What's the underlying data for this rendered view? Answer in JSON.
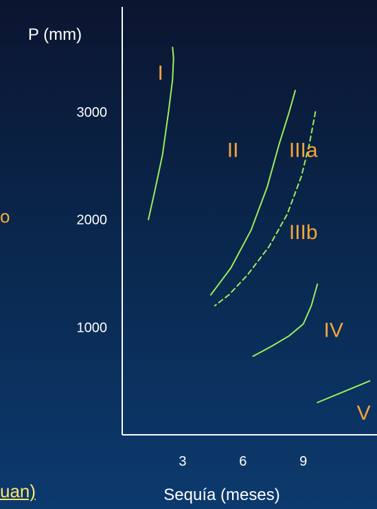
{
  "colors": {
    "axis": "#ffffff",
    "curve": "#9cf05a",
    "zone_label": "#f5a43a",
    "text": "#ffffff",
    "fragment_orange": "#f5b13c",
    "fragment_yellow": "#ffe66d"
  },
  "left_fragments": {
    "orange": "o",
    "yellow": "uan)"
  },
  "chart_data": {
    "type": "line",
    "ylabel": "P (mm)",
    "xlabel": "Sequía (meses)",
    "xticks": [
      3,
      6,
      9
    ],
    "yticks": [
      1000,
      2000,
      3000
    ],
    "xlim": [
      0,
      12.5
    ],
    "ylim": [
      0,
      3500
    ],
    "grid": false,
    "series": [
      {
        "name": "I",
        "style": "solid",
        "points": [
          [
            2.5,
            3600
          ],
          [
            2.55,
            3500
          ],
          [
            2.5,
            3300
          ],
          [
            2.3,
            3000
          ],
          [
            2.0,
            2600
          ],
          [
            1.6,
            2250
          ],
          [
            1.3,
            2000
          ]
        ]
      },
      {
        "name": "II",
        "style": "solid",
        "points": [
          [
            8.6,
            3200
          ],
          [
            8.3,
            3000
          ],
          [
            7.8,
            2700
          ],
          [
            7.2,
            2300
          ],
          [
            6.4,
            1900
          ],
          [
            5.4,
            1550
          ],
          [
            4.4,
            1300
          ]
        ]
      },
      {
        "name": "IIIa",
        "style": "dashed",
        "points": [
          [
            9.6,
            3000
          ],
          [
            9.3,
            2700
          ],
          [
            8.9,
            2400
          ],
          [
            8.2,
            2050
          ],
          [
            7.3,
            1750
          ],
          [
            6.2,
            1480
          ],
          [
            5.3,
            1300
          ],
          [
            4.6,
            1200
          ]
        ]
      },
      {
        "name": "IV",
        "style": "solid",
        "points": [
          [
            9.7,
            1400
          ],
          [
            9.4,
            1200
          ],
          [
            9.0,
            1030
          ],
          [
            8.3,
            920
          ],
          [
            7.4,
            820
          ],
          [
            6.5,
            730
          ]
        ]
      },
      {
        "name": "V",
        "style": "solid",
        "points": [
          [
            9.7,
            300
          ],
          [
            11.0,
            400
          ],
          [
            12.3,
            500
          ]
        ]
      }
    ],
    "zone_labels": [
      {
        "text": "I",
        "x": 1.9,
        "y": 3300
      },
      {
        "text": "II",
        "x": 5.5,
        "y": 2580
      },
      {
        "text": "IIIa",
        "x": 9.0,
        "y": 2580
      },
      {
        "text": "IIIb",
        "x": 9.0,
        "y": 1820
      },
      {
        "text": "IV",
        "x": 10.5,
        "y": 910
      },
      {
        "text": "V",
        "x": 12.0,
        "y": 140
      }
    ]
  }
}
